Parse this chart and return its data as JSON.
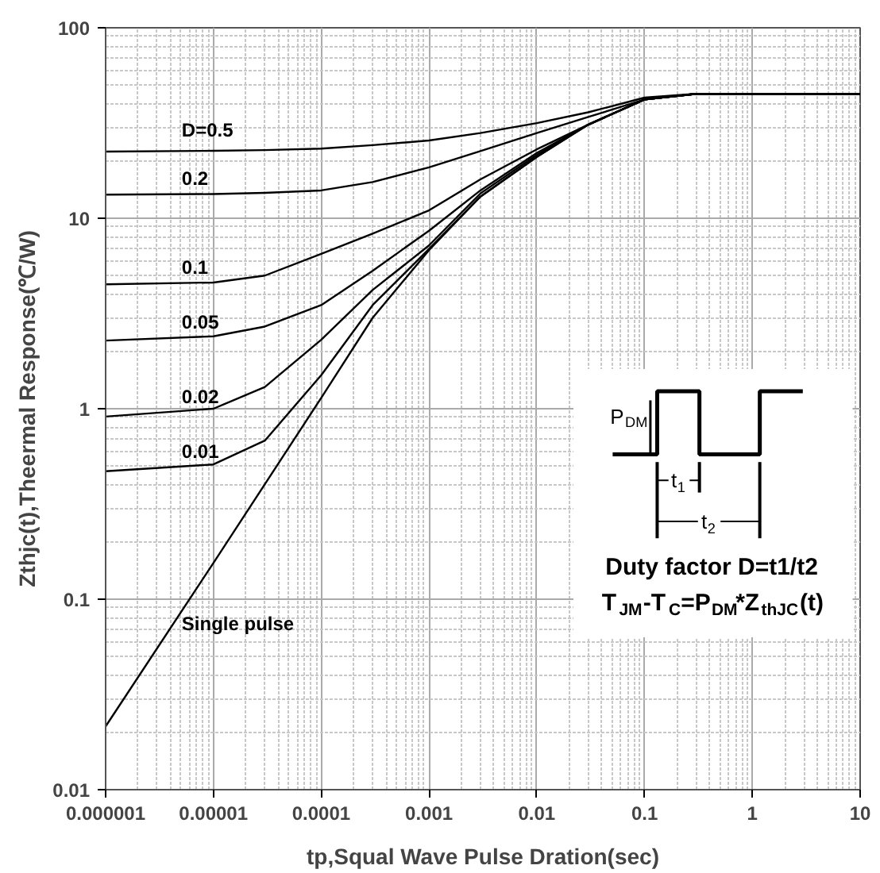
{
  "chart_data": {
    "type": "line",
    "xlabel": "tp,Squal Wave Pulse Dration(sec)",
    "ylabel": "Zthjc(t),Theermal Response(℃/W)",
    "log": "xy",
    "grid": true,
    "marker": "none",
    "line_style": "solid",
    "xlim": [
      1e-06,
      10
    ],
    "ylim": [
      0.01,
      100
    ],
    "xticks": [
      {
        "value": 1e-06,
        "label": "0.000001"
      },
      {
        "value": 1e-05,
        "label": "0.00001"
      },
      {
        "value": 0.0001,
        "label": "0.0001"
      },
      0.001,
      0.01,
      0.1,
      1,
      10
    ],
    "yticks": [
      0.01,
      0.1,
      1,
      10,
      100
    ],
    "x": [
      1e-06,
      1e-05,
      3e-05,
      0.0001,
      0.0003,
      0.001,
      0.003,
      0.01,
      0.03,
      0.1,
      0.3,
      1,
      10
    ],
    "series": [
      {
        "name": "D=0.5",
        "color": "#000000",
        "values": [
          22.4,
          22.6,
          22.8,
          23.2,
          24.2,
          25.6,
          28,
          31.6,
          36,
          43,
          45,
          45,
          45
        ]
      },
      {
        "name": "0.2",
        "color": "#000000",
        "values": [
          13.3,
          13.4,
          13.6,
          14,
          15.5,
          18.5,
          22.5,
          28,
          34,
          42,
          45,
          45,
          45
        ]
      },
      {
        "name": "0.1",
        "color": "#000000",
        "values": [
          4.5,
          4.6,
          5.0,
          6.5,
          8.3,
          11,
          16,
          23,
          31,
          42,
          45,
          45,
          45
        ]
      },
      {
        "name": "0.05",
        "color": "#000000",
        "values": [
          2.28,
          2.4,
          2.7,
          3.5,
          5.3,
          8.6,
          14,
          22,
          31,
          42,
          45,
          45,
          45
        ]
      },
      {
        "name": "0.02",
        "color": "#000000",
        "values": [
          0.91,
          1.0,
          1.3,
          2.3,
          4.2,
          7.2,
          13.5,
          21.5,
          31,
          42,
          45,
          45,
          45
        ]
      },
      {
        "name": "0.01",
        "color": "#000000",
        "values": [
          0.47,
          0.51,
          0.68,
          1.5,
          3.5,
          6.9,
          13,
          21,
          31,
          42,
          45,
          45,
          45
        ]
      },
      {
        "name": "Single pulse",
        "color": "#000000",
        "x": [
          1e-06,
          1e-05,
          0.0001,
          0.0003,
          0.001,
          0.003,
          0.01,
          0.03,
          0.1,
          0.3,
          1,
          10
        ],
        "values": [
          0.0215,
          0.155,
          1.14,
          3.0,
          6.8,
          13,
          21,
          31,
          42,
          45,
          45,
          45
        ]
      }
    ],
    "annotations": [
      "P$_{DM}$",
      "t$_{1}$",
      "t$_{2}$",
      "Duty factor D=t1/t2",
      "T$_{JM}$-T$_{C}$=P$_{DM}$*Z$_{thJC}$(t)"
    ]
  }
}
